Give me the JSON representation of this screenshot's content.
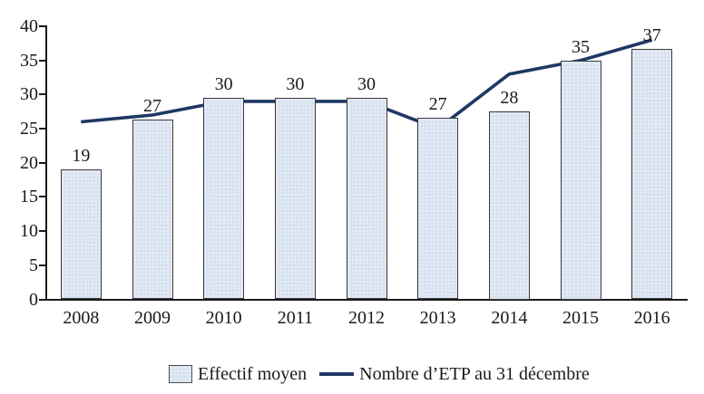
{
  "chart_data": {
    "type": "combo",
    "categories": [
      "2008",
      "2009",
      "2010",
      "2011",
      "2012",
      "2013",
      "2014",
      "2015",
      "2016"
    ],
    "series": [
      {
        "name": "Effectif moyen",
        "type": "bar",
        "values": [
          19,
          27,
          30,
          30,
          30,
          27,
          28,
          35,
          37
        ],
        "data_labels": [
          "19",
          "27",
          "30",
          "30",
          "30",
          "27",
          "28",
          "35",
          "37"
        ],
        "drawn_heights": [
          19,
          26.4,
          29.5,
          29.5,
          29.5,
          26.6,
          27.5,
          35,
          36.7
        ]
      },
      {
        "name": "Nombre d’ETP au 31 décembre",
        "type": "line",
        "values": [
          26,
          27,
          29,
          29,
          29,
          25,
          33,
          35,
          38
        ]
      }
    ],
    "title": "",
    "xlabel": "",
    "ylabel": "",
    "ylim": [
      0,
      40
    ],
    "ytick_step": 5,
    "ytick_labels": [
      "0",
      "5",
      "10",
      "15",
      "20",
      "25",
      "30",
      "35",
      "40"
    ],
    "grid": false,
    "legend_position": "bottom",
    "data_labels_on": "Effectif moyen"
  },
  "legend": {
    "bar_label": "Effectif moyen",
    "line_label": "Nombre d’ETP au 31 décembre"
  },
  "colors": {
    "bar_fill": "#d9e2f1",
    "bar_border": "#3a3a3a",
    "line": "#1f3864",
    "axis": "#1a1a1a",
    "text": "#1a1a1a",
    "background": "#ffffff"
  }
}
